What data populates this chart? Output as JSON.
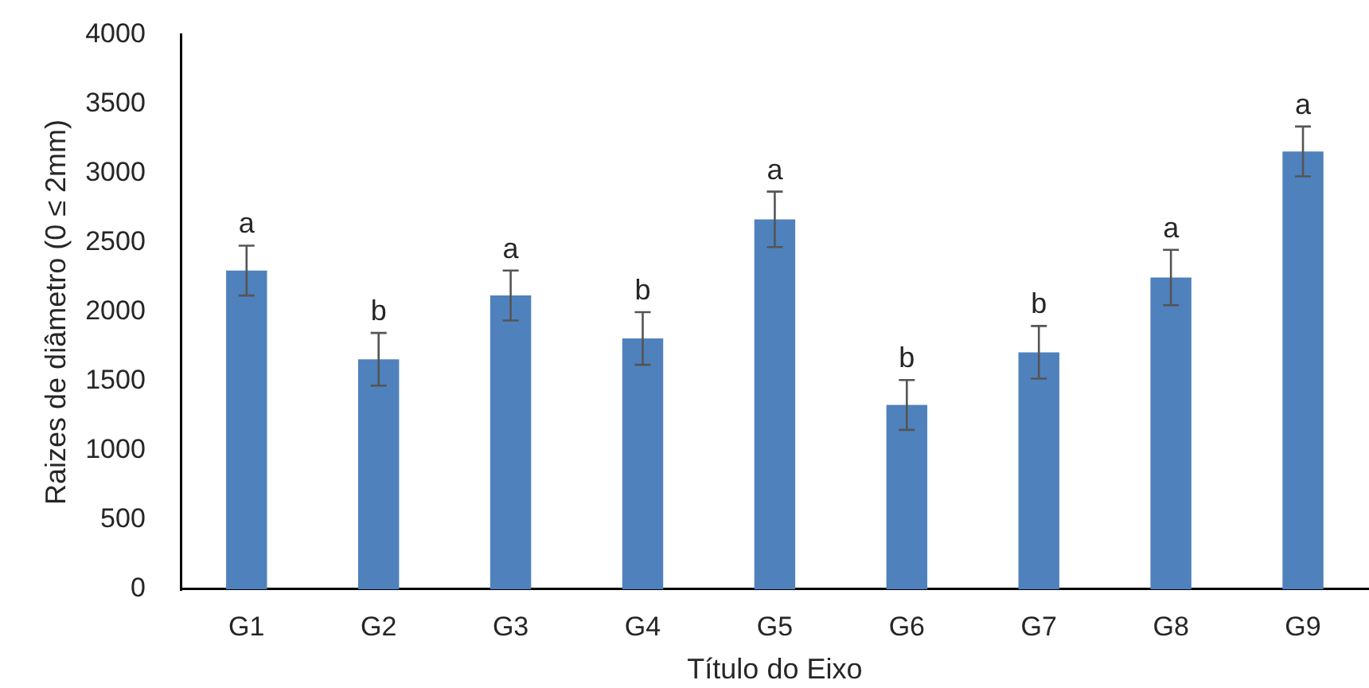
{
  "chart_data": {
    "type": "bar",
    "xlabel": "Título do Eixo",
    "ylabel": "Raizes de diâmetro (0 ≤ 2mm)",
    "categories": [
      "G1",
      "G2",
      "G3",
      "G4",
      "G5",
      "G6",
      "G7",
      "G8",
      "G9"
    ],
    "values": [
      2300,
      1660,
      2120,
      1810,
      2670,
      1330,
      1710,
      2250,
      3160
    ],
    "errors": [
      180,
      190,
      180,
      190,
      200,
      180,
      190,
      200,
      180
    ],
    "color": "#4f81bd",
    "ylim": [
      0,
      4000
    ],
    "yticks": [
      0,
      500,
      1000,
      1500,
      2000,
      2500,
      3000,
      3500,
      4000
    ],
    "annotations": [
      "a",
      "b",
      "a",
      "b",
      "a",
      "b",
      "b",
      "a",
      "a"
    ]
  }
}
